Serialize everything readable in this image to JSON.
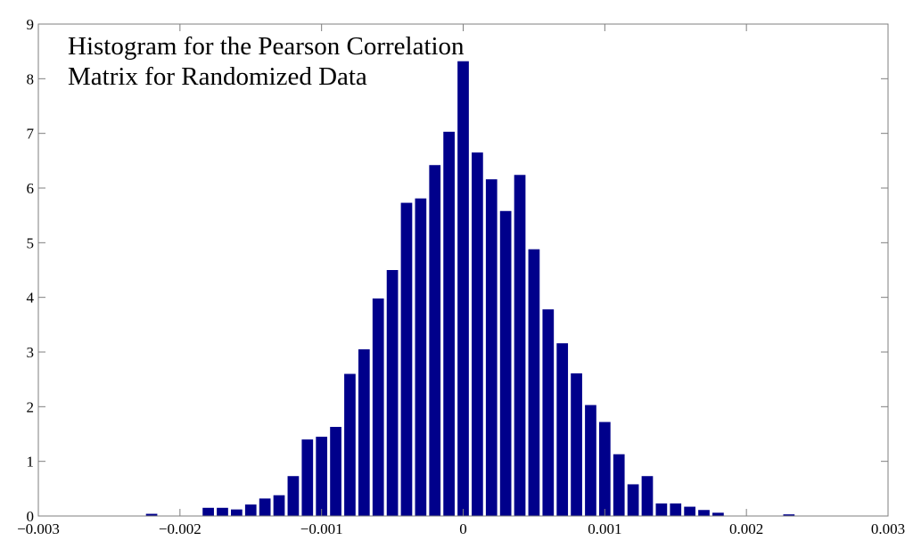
{
  "chart_data": {
    "type": "bar",
    "title_lines": [
      "Histogram for the Pearson Correlation",
      "Matrix for Randomized Data"
    ],
    "xlabel": "",
    "ylabel": "",
    "xlim": [
      -0.003,
      0.003
    ],
    "ylim": [
      0,
      9
    ],
    "grid": false,
    "legend": "none",
    "bar_color": "#00008b",
    "axis_color": "#7f7f7f",
    "bin_width": 0.0001,
    "x_ticks": [
      {
        "value": -0.003,
        "label": "−0.003"
      },
      {
        "value": -0.002,
        "label": "−0.002"
      },
      {
        "value": -0.001,
        "label": "−0.001"
      },
      {
        "value": 0,
        "label": "0"
      },
      {
        "value": 0.001,
        "label": "0.001"
      },
      {
        "value": 0.002,
        "label": "0.002"
      },
      {
        "value": 0.003,
        "label": "0.003"
      }
    ],
    "y_ticks": [
      {
        "value": 0,
        "label": "0"
      },
      {
        "value": 1,
        "label": "1"
      },
      {
        "value": 2,
        "label": "2"
      },
      {
        "value": 3,
        "label": "3"
      },
      {
        "value": 4,
        "label": "4"
      },
      {
        "value": 5,
        "label": "5"
      },
      {
        "value": 6,
        "label": "6"
      },
      {
        "value": 7,
        "label": "7"
      },
      {
        "value": 8,
        "label": "8"
      },
      {
        "value": 9,
        "label": "9"
      }
    ],
    "bins": [
      {
        "x": -0.0022,
        "y": 0.04
      },
      {
        "x": -0.0018,
        "y": 0.15
      },
      {
        "x": -0.0017,
        "y": 0.15
      },
      {
        "x": -0.0016,
        "y": 0.12
      },
      {
        "x": -0.0015,
        "y": 0.21
      },
      {
        "x": -0.0014,
        "y": 0.32
      },
      {
        "x": -0.0013,
        "y": 0.38
      },
      {
        "x": -0.0012,
        "y": 0.73
      },
      {
        "x": -0.0011,
        "y": 1.4
      },
      {
        "x": -0.001,
        "y": 1.45
      },
      {
        "x": -0.0009,
        "y": 1.63
      },
      {
        "x": -0.0008,
        "y": 2.6
      },
      {
        "x": -0.0007,
        "y": 3.05
      },
      {
        "x": -0.0006,
        "y": 3.98
      },
      {
        "x": -0.0005,
        "y": 4.5
      },
      {
        "x": -0.0004,
        "y": 5.73
      },
      {
        "x": -0.0003,
        "y": 5.81
      },
      {
        "x": -0.0002,
        "y": 6.42
      },
      {
        "x": -0.0001,
        "y": 7.03
      },
      {
        "x": 0.0,
        "y": 8.32
      },
      {
        "x": 0.0001,
        "y": 6.65
      },
      {
        "x": 0.0002,
        "y": 6.16
      },
      {
        "x": 0.0003,
        "y": 5.58
      },
      {
        "x": 0.0004,
        "y": 6.24
      },
      {
        "x": 0.0005,
        "y": 4.88
      },
      {
        "x": 0.0006,
        "y": 3.78
      },
      {
        "x": 0.0007,
        "y": 3.16
      },
      {
        "x": 0.0008,
        "y": 2.61
      },
      {
        "x": 0.0009,
        "y": 2.03
      },
      {
        "x": 0.001,
        "y": 1.72
      },
      {
        "x": 0.0011,
        "y": 1.13
      },
      {
        "x": 0.0012,
        "y": 0.58
      },
      {
        "x": 0.0013,
        "y": 0.73
      },
      {
        "x": 0.0014,
        "y": 0.23
      },
      {
        "x": 0.0015,
        "y": 0.23
      },
      {
        "x": 0.0016,
        "y": 0.17
      },
      {
        "x": 0.0017,
        "y": 0.11
      },
      {
        "x": 0.0018,
        "y": 0.06
      },
      {
        "x": 0.0023,
        "y": 0.03
      }
    ]
  }
}
